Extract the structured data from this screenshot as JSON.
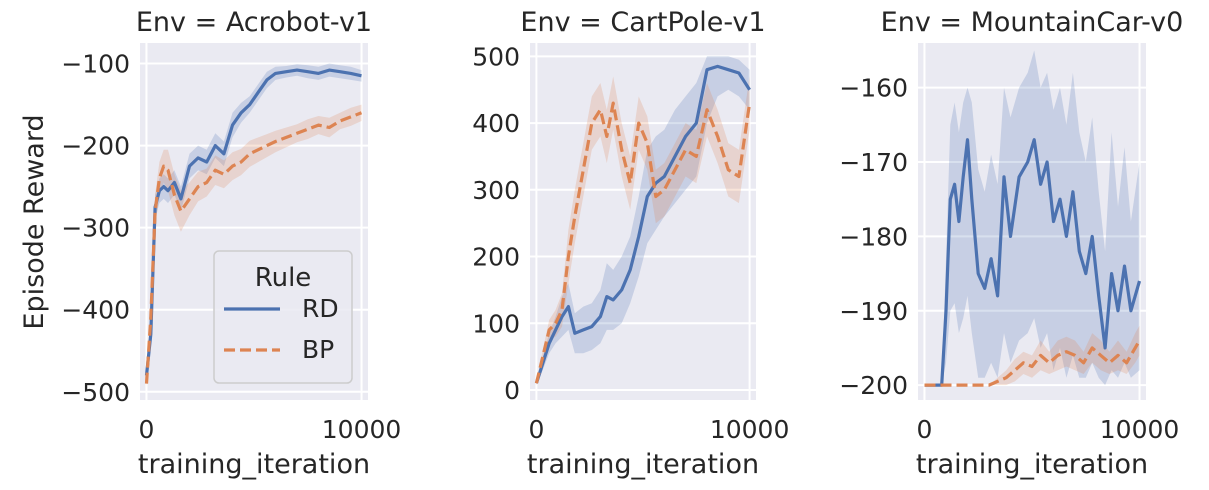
{
  "figure": {
    "ylabel": "Episode Reward",
    "legend": {
      "title": "Rule",
      "placement": "lower-right of first panel",
      "entries": [
        {
          "label": "RD",
          "style": "solid",
          "color": "#4c72b0"
        },
        {
          "label": "BP",
          "style": "dashed",
          "color": "#dd8452"
        }
      ]
    },
    "style": {
      "panel_background": "#eaeaf2",
      "grid": true,
      "grid_color": "#ffffff"
    }
  },
  "chart_data": [
    {
      "type": "line",
      "title": "Env = Acrobot-v1",
      "xlabel": "training_iteration",
      "ylabel": "Episode Reward",
      "xlim": [
        -300,
        10300
      ],
      "ylim": [
        -510,
        -75
      ],
      "xticks": [
        0,
        10000
      ],
      "xtick_labels": [
        "0",
        "10000"
      ],
      "yticks": [
        -500,
        -400,
        -300,
        -200,
        -100
      ],
      "ytick_labels": [
        "−500",
        "−400",
        "−300",
        "−200",
        "−100"
      ],
      "series": [
        {
          "name": "RD",
          "color": "#4c72b0",
          "dash": "solid",
          "x": [
            0,
            200,
            400,
            600,
            800,
            1000,
            1300,
            1600,
            2000,
            2400,
            2800,
            3200,
            3600,
            4000,
            4400,
            4800,
            5200,
            5600,
            6000,
            6500,
            7000,
            7500,
            8000,
            8500,
            9000,
            9500,
            10000
          ],
          "y": [
            -480,
            -430,
            -275,
            -255,
            -250,
            -255,
            -245,
            -265,
            -225,
            -215,
            -220,
            -200,
            -210,
            -175,
            -160,
            -150,
            -135,
            -120,
            -112,
            -110,
            -108,
            -110,
            -112,
            -108,
            -110,
            -112,
            -115
          ],
          "lower": [
            -490,
            -445,
            -290,
            -270,
            -265,
            -270,
            -260,
            -280,
            -240,
            -230,
            -235,
            -215,
            -225,
            -190,
            -172,
            -160,
            -145,
            -130,
            -120,
            -117,
            -115,
            -118,
            -120,
            -116,
            -118,
            -120,
            -122
          ],
          "upper": [
            -470,
            -415,
            -260,
            -240,
            -235,
            -240,
            -230,
            -250,
            -210,
            -200,
            -205,
            -185,
            -195,
            -160,
            -148,
            -140,
            -125,
            -110,
            -104,
            -103,
            -101,
            -102,
            -104,
            -100,
            -102,
            -104,
            -108
          ]
        },
        {
          "name": "BP",
          "color": "#dd8452",
          "dash": "dashed",
          "x": [
            0,
            200,
            400,
            600,
            800,
            1000,
            1300,
            1600,
            2000,
            2400,
            2800,
            3200,
            3600,
            4000,
            4400,
            4800,
            5200,
            5600,
            6000,
            6500,
            7000,
            7500,
            8000,
            8500,
            9000,
            9500,
            10000
          ],
          "y": [
            -490,
            -410,
            -280,
            -240,
            -225,
            -230,
            -260,
            -280,
            -265,
            -250,
            -245,
            -230,
            -235,
            -225,
            -220,
            -210,
            -205,
            -200,
            -195,
            -190,
            -185,
            -180,
            -175,
            -178,
            -170,
            -165,
            -160
          ],
          "lower": [
            -495,
            -425,
            -300,
            -260,
            -245,
            -255,
            -285,
            -305,
            -285,
            -268,
            -262,
            -248,
            -252,
            -242,
            -236,
            -226,
            -220,
            -214,
            -208,
            -202,
            -196,
            -192,
            -186,
            -190,
            -180,
            -176,
            -170
          ],
          "upper": [
            -485,
            -395,
            -260,
            -220,
            -205,
            -205,
            -235,
            -255,
            -245,
            -232,
            -228,
            -212,
            -218,
            -208,
            -204,
            -194,
            -190,
            -186,
            -182,
            -178,
            -174,
            -168,
            -164,
            -166,
            -160,
            -154,
            -150
          ]
        }
      ]
    },
    {
      "type": "line",
      "title": "Env = CartPole-v1",
      "xlabel": "training_iteration",
      "xlim": [
        -300,
        10300
      ],
      "ylim": [
        -15,
        520
      ],
      "xticks": [
        0,
        10000
      ],
      "xtick_labels": [
        "0",
        "10000"
      ],
      "yticks": [
        0,
        100,
        200,
        300,
        400,
        500
      ],
      "ytick_labels": [
        "0",
        "100",
        "200",
        "300",
        "400",
        "500"
      ],
      "series": [
        {
          "name": "RD",
          "color": "#4c72b0",
          "dash": "solid",
          "x": [
            0,
            300,
            600,
            900,
            1200,
            1500,
            1800,
            2200,
            2600,
            3000,
            3300,
            3600,
            4000,
            4400,
            4800,
            5200,
            5600,
            6000,
            6500,
            7000,
            7500,
            8000,
            8500,
            9000,
            9500,
            10000
          ],
          "y": [
            10,
            40,
            70,
            90,
            110,
            125,
            85,
            90,
            95,
            110,
            140,
            135,
            150,
            180,
            230,
            290,
            310,
            320,
            350,
            380,
            400,
            480,
            485,
            480,
            475,
            450
          ],
          "lower": [
            8,
            30,
            55,
            70,
            80,
            90,
            55,
            55,
            60,
            70,
            90,
            90,
            100,
            130,
            170,
            220,
            240,
            260,
            280,
            300,
            320,
            400,
            440,
            450,
            440,
            420
          ],
          "upper": [
            12,
            50,
            85,
            110,
            140,
            160,
            115,
            125,
            130,
            150,
            190,
            180,
            200,
            230,
            290,
            360,
            380,
            390,
            420,
            440,
            460,
            500,
            500,
            500,
            495,
            480
          ]
        },
        {
          "name": "BP",
          "color": "#dd8452",
          "dash": "dashed",
          "x": [
            0,
            300,
            600,
            900,
            1200,
            1500,
            1800,
            2200,
            2600,
            3000,
            3300,
            3600,
            4000,
            4400,
            4800,
            5200,
            5600,
            6000,
            6500,
            7000,
            7500,
            8000,
            8500,
            9000,
            9500,
            10000
          ],
          "y": [
            10,
            50,
            90,
            100,
            120,
            200,
            260,
            330,
            400,
            420,
            380,
            430,
            360,
            310,
            400,
            370,
            290,
            300,
            330,
            360,
            350,
            420,
            380,
            330,
            320,
            430
          ],
          "lower": [
            8,
            40,
            75,
            80,
            95,
            160,
            220,
            290,
            360,
            380,
            340,
            390,
            320,
            270,
            360,
            330,
            250,
            260,
            290,
            320,
            310,
            380,
            340,
            290,
            280,
            390
          ],
          "upper": [
            12,
            60,
            105,
            120,
            145,
            240,
            300,
            370,
            440,
            460,
            420,
            470,
            400,
            350,
            440,
            410,
            330,
            340,
            370,
            400,
            390,
            460,
            420,
            370,
            360,
            470
          ]
        }
      ]
    },
    {
      "type": "line",
      "title": "Env = MountainCar-v0",
      "xlabel": "training_iteration",
      "xlim": [
        -300,
        10300
      ],
      "ylim": [
        -202,
        -154
      ],
      "xticks": [
        0,
        10000
      ],
      "xtick_labels": [
        "0",
        "10000"
      ],
      "yticks": [
        -200,
        -190,
        -180,
        -170,
        -160
      ],
      "ytick_labels": [
        "−200",
        "−190",
        "−180",
        "−170",
        "−160"
      ],
      "series": [
        {
          "name": "RD",
          "color": "#4c72b0",
          "dash": "solid",
          "x": [
            0,
            400,
            800,
            1000,
            1200,
            1400,
            1600,
            1800,
            2000,
            2200,
            2500,
            2800,
            3100,
            3400,
            3700,
            4000,
            4400,
            4800,
            5100,
            5400,
            5700,
            6000,
            6300,
            6600,
            6900,
            7200,
            7500,
            7800,
            8100,
            8400,
            8700,
            9000,
            9300,
            9600,
            10000
          ],
          "y": [
            -200,
            -200,
            -200,
            -190,
            -175,
            -173,
            -178,
            -172,
            -167,
            -175,
            -185,
            -187,
            -183,
            -188,
            -172,
            -180,
            -172,
            -170,
            -167,
            -173,
            -170,
            -178,
            -175,
            -180,
            -174,
            -182,
            -185,
            -180,
            -188,
            -195,
            -185,
            -190,
            -184,
            -190,
            -186
          ],
          "lower": [
            -200,
            -200,
            -200,
            -197,
            -190,
            -189,
            -193,
            -191,
            -188,
            -193,
            -199,
            -199,
            -197,
            -199,
            -193,
            -197,
            -194,
            -193,
            -191,
            -195,
            -193,
            -198,
            -195,
            -199,
            -196,
            -199,
            -199,
            -197,
            -199,
            -200,
            -198,
            -199,
            -197,
            -199,
            -198
          ],
          "upper": [
            -200,
            -200,
            -200,
            -183,
            -165,
            -162,
            -166,
            -162,
            -160,
            -162,
            -171,
            -174,
            -169,
            -173,
            -160,
            -164,
            -160,
            -158,
            -155,
            -160,
            -158,
            -163,
            -160,
            -165,
            -158,
            -166,
            -170,
            -164,
            -174,
            -182,
            -166,
            -176,
            -168,
            -178,
            -170
          ]
        },
        {
          "name": "BP",
          "color": "#dd8452",
          "dash": "dashed",
          "x": [
            0,
            500,
            1000,
            1500,
            2000,
            2500,
            3000,
            3400,
            3800,
            4200,
            4600,
            5000,
            5400,
            5800,
            6200,
            6600,
            7000,
            7400,
            7800,
            8200,
            8600,
            9000,
            9400,
            9800,
            10000
          ],
          "y": [
            -200,
            -200,
            -200,
            -200,
            -200,
            -200,
            -200,
            -199.5,
            -199,
            -198,
            -197,
            -197.5,
            -196,
            -197,
            -196,
            -195.5,
            -196,
            -197,
            -195,
            -196,
            -197,
            -196,
            -197,
            -195,
            -194
          ],
          "lower": [
            -200,
            -200,
            -200,
            -200,
            -200,
            -200,
            -200,
            -200,
            -200,
            -199.5,
            -198.5,
            -199,
            -198,
            -198.5,
            -198,
            -197.5,
            -198,
            -198.5,
            -197,
            -198,
            -198.5,
            -198,
            -198.5,
            -197,
            -196
          ],
          "upper": [
            -200,
            -200,
            -200,
            -200,
            -200,
            -200,
            -200,
            -199,
            -198,
            -196.5,
            -195.5,
            -196,
            -194,
            -195.5,
            -194,
            -193.5,
            -194,
            -195.5,
            -193,
            -194,
            -195.5,
            -194,
            -195.5,
            -193,
            -192
          ]
        }
      ]
    }
  ]
}
